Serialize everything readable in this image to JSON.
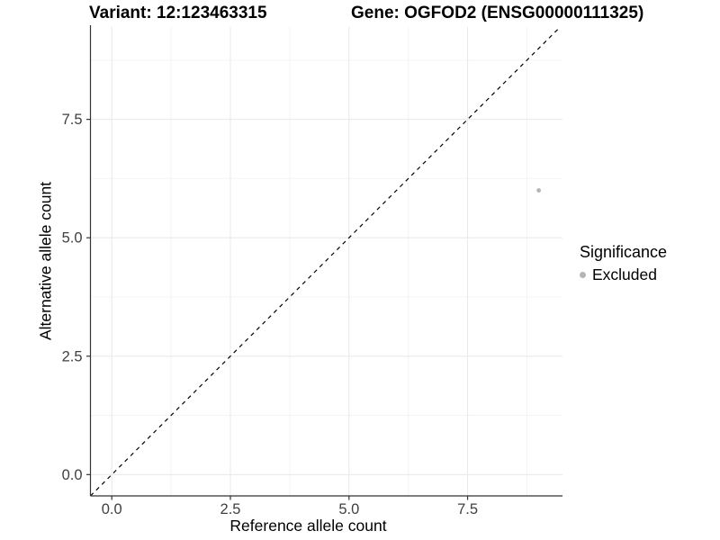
{
  "titles": {
    "variant": "Variant: 12:123463315",
    "gene": "Gene: OGFOD2 (ENSG00000111325)"
  },
  "axes": {
    "x": {
      "label": "Reference allele count",
      "tick_labels": [
        "0.0",
        "2.5",
        "5.0",
        "7.5"
      ]
    },
    "y": {
      "label": "Alternative allele count",
      "tick_labels": [
        "0.0",
        "2.5",
        "5.0",
        "7.5"
      ]
    }
  },
  "legend": {
    "title": "Significance",
    "items": [
      {
        "label": "Excluded",
        "color": "#b5b5b5"
      }
    ]
  },
  "chart_data": {
    "type": "scatter",
    "title_left": "Variant: 12:123463315",
    "title_right": "Gene: OGFOD2 (ENSG00000111325)",
    "xlabel": "Reference allele count",
    "ylabel": "Alternative allele count",
    "xlim": [
      -0.45,
      9.5
    ],
    "ylim": [
      -0.45,
      9.45
    ],
    "x_ticks": [
      0,
      2.5,
      5,
      7.5
    ],
    "y_ticks": [
      0,
      2.5,
      5,
      7.5
    ],
    "x_tick_labels": [
      "0.0",
      "2.5",
      "5.0",
      "7.5"
    ],
    "y_tick_labels": [
      "0.0",
      "2.5",
      "5.0",
      "7.5"
    ],
    "x_minor_ticks": [
      1.25,
      3.75,
      6.25,
      8.75
    ],
    "y_minor_ticks": [
      1.25,
      3.75,
      6.25,
      8.75
    ],
    "grid": true,
    "legend_position": "right",
    "series": [
      {
        "name": "Excluded",
        "color": "#b5b5b5",
        "points": [
          {
            "x": 9,
            "y": 6
          }
        ]
      }
    ],
    "reference_line": {
      "type": "identity",
      "slope": 1,
      "intercept": 0,
      "style": "dashed",
      "color": "#000000"
    },
    "colors": {
      "grid_major": "#e8e8e8",
      "grid_minor": "#f4f4f4",
      "axis_line": "#333333",
      "tick_mark": "#333333",
      "tick_label": "#404040",
      "dashed_line": "#000000"
    }
  }
}
